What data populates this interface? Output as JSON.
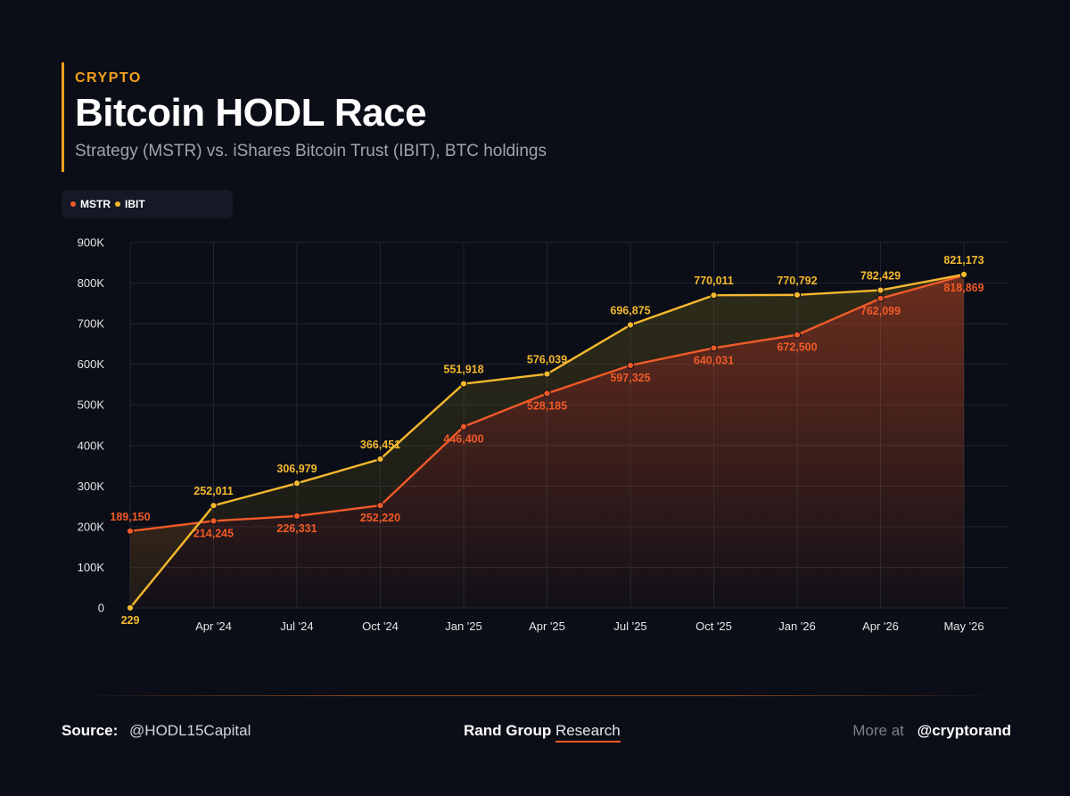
{
  "header": {
    "kicker": "CRYPTO",
    "title": "Bitcoin HODL Race",
    "subtitle": "Strategy (MSTR) vs. iShares Bitcoin Trust (IBIT), BTC holdings"
  },
  "legend": [
    {
      "label": "MSTR",
      "color": "#f05a28"
    },
    {
      "label": "IBIT",
      "color": "#f5b82e"
    }
  ],
  "chart_data": {
    "type": "line",
    "title": "Bitcoin HODL Race",
    "subtitle": "Strategy (MSTR) vs. iShares Bitcoin Trust (IBIT), BTC holdings",
    "x_tick_labels": [
      "Apr '24",
      "Jul '24",
      "Oct '24",
      "Jan '25",
      "Apr '25",
      "Jul '25",
      "Oct '25",
      "Jan '26",
      "Apr '26",
      "May '26"
    ],
    "y_tick_labels": [
      "0",
      "100K",
      "200K",
      "300K",
      "400K",
      "500K",
      "600K",
      "700K",
      "800K",
      "900K"
    ],
    "ylim": [
      0,
      900000
    ],
    "grid": true,
    "legend_position": "top-left",
    "series": [
      {
        "name": "MSTR",
        "color": "#f05a28",
        "values": [
          189150,
          214245,
          226331,
          252220,
          446400,
          528185,
          597325,
          640031,
          672500,
          762099,
          818869
        ],
        "labels": [
          "189,150",
          "214,245",
          "226,331",
          "252,220",
          "446,400",
          "528,185",
          "597,325",
          "640,031",
          "672,500",
          "762,099",
          "818,869"
        ]
      },
      {
        "name": "IBIT",
        "color": "#f5b82e",
        "values": [
          229,
          252011,
          306979,
          366451,
          551918,
          576039,
          696875,
          770011,
          770792,
          782429,
          821173
        ],
        "labels": [
          "229",
          "252,011",
          "306,979",
          "366,451",
          "551,918",
          "576,039",
          "696,875",
          "770,011",
          "770,792",
          "782,429",
          "821,173"
        ]
      }
    ]
  },
  "footer": {
    "source_label": "Source:",
    "source_value": "@HODL15Capital",
    "brand_strong": "Rand Group",
    "brand_light": "Research",
    "more_label": "More at",
    "more_handle": "@cryptorand"
  }
}
